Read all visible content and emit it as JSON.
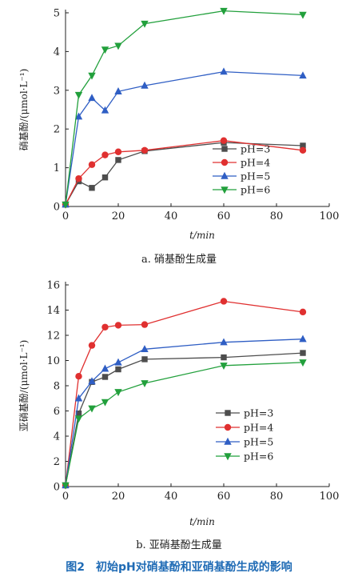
{
  "figure_caption": "图2　初始pH对硝基酚和亚硝基酚生成的影响",
  "colors": {
    "pH=3": "#4d4d4d",
    "pH=4": "#e03030",
    "pH=5": "#2f5ec4",
    "pH=6": "#22a03c"
  },
  "chart_data": [
    {
      "type": "line",
      "subtitle": "a. 硝基酚生成量",
      "xlabel": "t/min",
      "ylabel": "硝基酚/(μmol·L⁻¹)",
      "xlim": [
        0,
        100
      ],
      "ylim": [
        0,
        5
      ],
      "xticks": [
        0,
        20,
        40,
        60,
        80,
        100
      ],
      "yticks": [
        0,
        1,
        2,
        3,
        4,
        5
      ],
      "legend_position": "bottom-right",
      "x": [
        0,
        5,
        10,
        15,
        20,
        30,
        60,
        90
      ],
      "series": [
        {
          "name": "pH=3",
          "marker": "square",
          "values": [
            0.05,
            0.65,
            0.48,
            0.75,
            1.2,
            1.43,
            1.65,
            1.57
          ]
        },
        {
          "name": "pH=4",
          "marker": "circle",
          "values": [
            0.05,
            0.72,
            1.08,
            1.33,
            1.41,
            1.45,
            1.7,
            1.45
          ]
        },
        {
          "name": "pH=5",
          "marker": "triangle-up",
          "values": [
            0.05,
            2.32,
            2.8,
            2.48,
            2.97,
            3.12,
            3.48,
            3.38
          ]
        },
        {
          "name": "pH=6",
          "marker": "triangle-down",
          "values": [
            0.05,
            2.88,
            3.38,
            4.05,
            4.15,
            4.72,
            5.05,
            4.95
          ]
        }
      ]
    },
    {
      "type": "line",
      "subtitle": "b. 亚硝基酚生成量",
      "xlabel": "t/min",
      "ylabel": "亚硝基酚/(μmol·L⁻¹)",
      "xlim": [
        0,
        100
      ],
      "ylim": [
        0,
        16
      ],
      "xticks": [
        0,
        20,
        40,
        60,
        80,
        100
      ],
      "yticks": [
        0,
        2,
        4,
        6,
        8,
        10,
        12,
        14,
        16
      ],
      "legend_position": "bottom-right",
      "x": [
        0,
        5,
        10,
        15,
        20,
        30,
        60,
        90
      ],
      "series": [
        {
          "name": "pH=3",
          "marker": "square",
          "values": [
            0.1,
            5.8,
            8.3,
            8.7,
            9.3,
            10.1,
            10.25,
            10.6
          ]
        },
        {
          "name": "pH=4",
          "marker": "circle",
          "values": [
            0.1,
            8.75,
            11.2,
            12.65,
            12.8,
            12.85,
            14.7,
            13.85
          ]
        },
        {
          "name": "pH=5",
          "marker": "triangle-up",
          "values": [
            0.1,
            7.0,
            8.35,
            9.35,
            9.85,
            10.9,
            11.45,
            11.7
          ]
        },
        {
          "name": "pH=6",
          "marker": "triangle-down",
          "values": [
            0.1,
            5.4,
            6.2,
            6.7,
            7.5,
            8.2,
            9.6,
            9.85
          ]
        }
      ]
    }
  ]
}
